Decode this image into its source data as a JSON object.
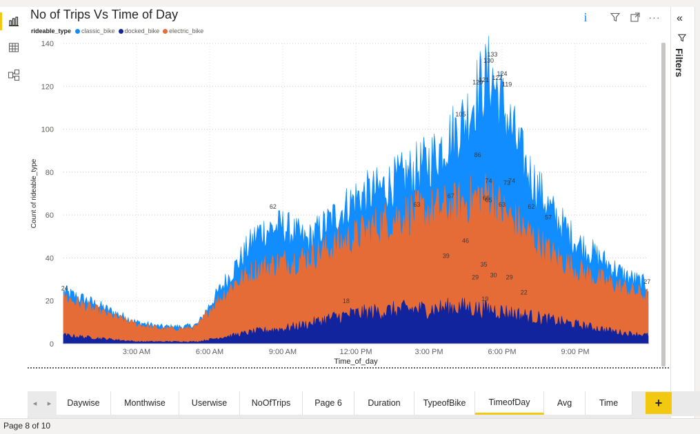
{
  "app": {
    "page_indicator": "Page 8 of 10"
  },
  "left_rail": {
    "items": [
      {
        "icon": "report-view-icon"
      },
      {
        "icon": "data-view-icon"
      },
      {
        "icon": "model-view-icon"
      }
    ]
  },
  "visual": {
    "title": "No of Trips Vs Time of Day",
    "tools": {
      "info": "i",
      "filter_icon": "filter-icon",
      "focus_icon": "focus-mode-icon",
      "more": "···"
    },
    "legend": {
      "title": "rideable_type",
      "items": [
        {
          "label": "classic_bike",
          "color": "#118dff"
        },
        {
          "label": "docked_bike",
          "color": "#12239e"
        },
        {
          "label": "electric_bike",
          "color": "#e66c37"
        }
      ]
    }
  },
  "right_pane": {
    "collapse_glyph": "«",
    "filters_label": "Filters"
  },
  "tabs": [
    {
      "label": "Daywise",
      "active": false
    },
    {
      "label": "Monthwise",
      "active": false
    },
    {
      "label": "Userwise",
      "active": false
    },
    {
      "label": "NoOfTrips",
      "active": false
    },
    {
      "label": "Page 6",
      "active": false
    },
    {
      "label": "Duration",
      "active": false
    },
    {
      "label": "TypeofBike",
      "active": false
    },
    {
      "label": "TimeofDay",
      "active": true
    },
    {
      "label": "Avg",
      "active": false
    },
    {
      "label": "Time",
      "active": false
    }
  ],
  "add_tab_label": "+",
  "chart_data": {
    "type": "area",
    "title": "No of Trips Vs Time of Day",
    "xlabel": "Time_of_day",
    "ylabel": "Count of rideable_type",
    "ylim": [
      0,
      140
    ],
    "yticks": [
      0,
      20,
      40,
      60,
      80,
      100,
      120,
      140
    ],
    "xlim_hours": [
      0,
      24
    ],
    "xticks": [
      {
        "hour": 3,
        "label": "3:00 AM"
      },
      {
        "hour": 6,
        "label": "6:00 AM"
      },
      {
        "hour": 9,
        "label": "9:00 AM"
      },
      {
        "hour": 12,
        "label": "12:00 PM"
      },
      {
        "hour": 15,
        "label": "3:00 PM"
      },
      {
        "hour": 18,
        "label": "6:00 PM"
      },
      {
        "hour": 21,
        "label": "9:00 PM"
      }
    ],
    "grid": true,
    "legend_position": "top-left",
    "x_hours": [
      0,
      1,
      2,
      3,
      4,
      5,
      5.5,
      6,
      7,
      8,
      9,
      10,
      11,
      12,
      13,
      14,
      15,
      16,
      16.5,
      17,
      17.5,
      18,
      19,
      20,
      21,
      22,
      23,
      24
    ],
    "series": [
      {
        "name": "classic_bike",
        "color": "#118dff",
        "values": [
          24,
          20,
          15,
          10,
          8,
          8,
          9,
          18,
          35,
          52,
          55,
          48,
          58,
          68,
          72,
          78,
          85,
          98,
          105,
          118,
          126,
          112,
          82,
          62,
          48,
          40,
          32,
          27
        ]
      },
      {
        "name": "docked_bike",
        "color": "#12239e",
        "values": [
          4,
          3,
          2,
          1,
          1,
          1,
          1,
          2,
          4,
          6,
          7,
          9,
          12,
          14,
          15,
          16,
          16,
          17,
          17,
          16,
          16,
          15,
          13,
          11,
          9,
          7,
          5,
          4
        ]
      },
      {
        "name": "electric_bike",
        "color": "#e66c37",
        "values": [
          22,
          17,
          13,
          9,
          7,
          7,
          8,
          16,
          28,
          35,
          38,
          40,
          45,
          50,
          56,
          60,
          62,
          64,
          66,
          68,
          70,
          62,
          52,
          42,
          35,
          30,
          26,
          22
        ]
      }
    ],
    "annotations": [
      {
        "x": 0.05,
        "y": 24,
        "label": "24"
      },
      {
        "x": 8.6,
        "y": 62,
        "label": "62"
      },
      {
        "x": 11.6,
        "y": 18,
        "label": "18"
      },
      {
        "x": 14.5,
        "y": 63,
        "label": "63"
      },
      {
        "x": 15.7,
        "y": 39,
        "label": "39"
      },
      {
        "x": 15.9,
        "y": 67,
        "label": "67"
      },
      {
        "x": 16.3,
        "y": 105,
        "label": "105"
      },
      {
        "x": 16.5,
        "y": 46,
        "label": "46"
      },
      {
        "x": 16.9,
        "y": 29,
        "label": "29"
      },
      {
        "x": 17.0,
        "y": 86,
        "label": "86"
      },
      {
        "x": 17.0,
        "y": 120,
        "label": "120"
      },
      {
        "x": 17.25,
        "y": 121,
        "label": "121"
      },
      {
        "x": 17.25,
        "y": 35,
        "label": "35"
      },
      {
        "x": 17.3,
        "y": 19,
        "label": "19"
      },
      {
        "x": 17.35,
        "y": 66,
        "label": "66"
      },
      {
        "x": 17.45,
        "y": 130,
        "label": "130"
      },
      {
        "x": 17.45,
        "y": 74,
        "label": "74"
      },
      {
        "x": 17.45,
        "y": 65,
        "label": "65"
      },
      {
        "x": 17.6,
        "y": 133,
        "label": "133"
      },
      {
        "x": 17.65,
        "y": 30,
        "label": "30"
      },
      {
        "x": 17.8,
        "y": 122,
        "label": "122"
      },
      {
        "x": 18.0,
        "y": 63,
        "label": "63"
      },
      {
        "x": 18.0,
        "y": 124,
        "label": "124"
      },
      {
        "x": 18.2,
        "y": 119,
        "label": "119"
      },
      {
        "x": 18.2,
        "y": 73,
        "label": "73"
      },
      {
        "x": 18.3,
        "y": 29,
        "label": "29"
      },
      {
        "x": 18.4,
        "y": 74,
        "label": "74"
      },
      {
        "x": 18.9,
        "y": 22,
        "label": "22"
      },
      {
        "x": 19.2,
        "y": 62,
        "label": "62"
      },
      {
        "x": 19.9,
        "y": 57,
        "label": "57"
      },
      {
        "x": 23.95,
        "y": 27,
        "label": "27"
      }
    ]
  }
}
